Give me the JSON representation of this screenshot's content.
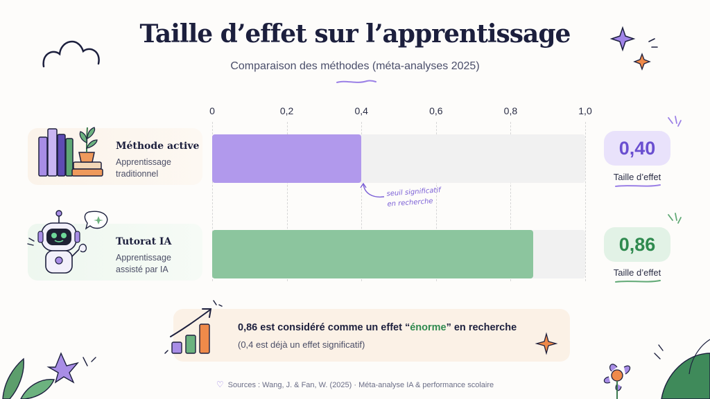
{
  "header": {
    "title": "Taille d’effet sur l’apprentissage",
    "subtitle": "Comparaison des méthodes (méta-analyses 2025)"
  },
  "chart_data": {
    "type": "bar",
    "orientation": "horizontal",
    "xlim": [
      0,
      1.0
    ],
    "ticks": [
      "0",
      "0,2",
      "0,4",
      "0,6",
      "0,8",
      "1,0"
    ],
    "categories": [
      "Méthode active",
      "Tutorat IA"
    ],
    "values": [
      0.4,
      0.86
    ],
    "value_labels": [
      "0,40",
      "0,86"
    ],
    "grid": true,
    "colors": [
      "#b199ec",
      "#8cc59e"
    ]
  },
  "rows": [
    {
      "title": "Méthode active",
      "line1": "Apprentissage",
      "line2": "traditionnel",
      "effect_label": "Taille d’effet"
    },
    {
      "title": "Tutorat IA",
      "line1": "Apprentissage",
      "line2": "assisté par IA",
      "effect_label": "Taille d’effet"
    }
  ],
  "annotation": {
    "line1": "seuil significatif",
    "line2": "en recherche"
  },
  "callout": {
    "pre": "0,86 est considéré comme un effet “",
    "highlight": "énorme",
    "post": "” en recherche",
    "sub": "(0,4 est déjà un effet significatif)"
  },
  "footer": {
    "source": "Sources : Wang, J. & Fan, W. (2025) · Méta-analyse IA & performance scolaire"
  },
  "colors": {
    "violet": "#b199ec",
    "violet_pill": "#e9e2fb",
    "violet_text": "#6a4fd0",
    "green": "#8cc59e",
    "green_pill": "#e2f2e6",
    "green_text": "#2f8a4f",
    "highlight": "#2f8a4f"
  }
}
